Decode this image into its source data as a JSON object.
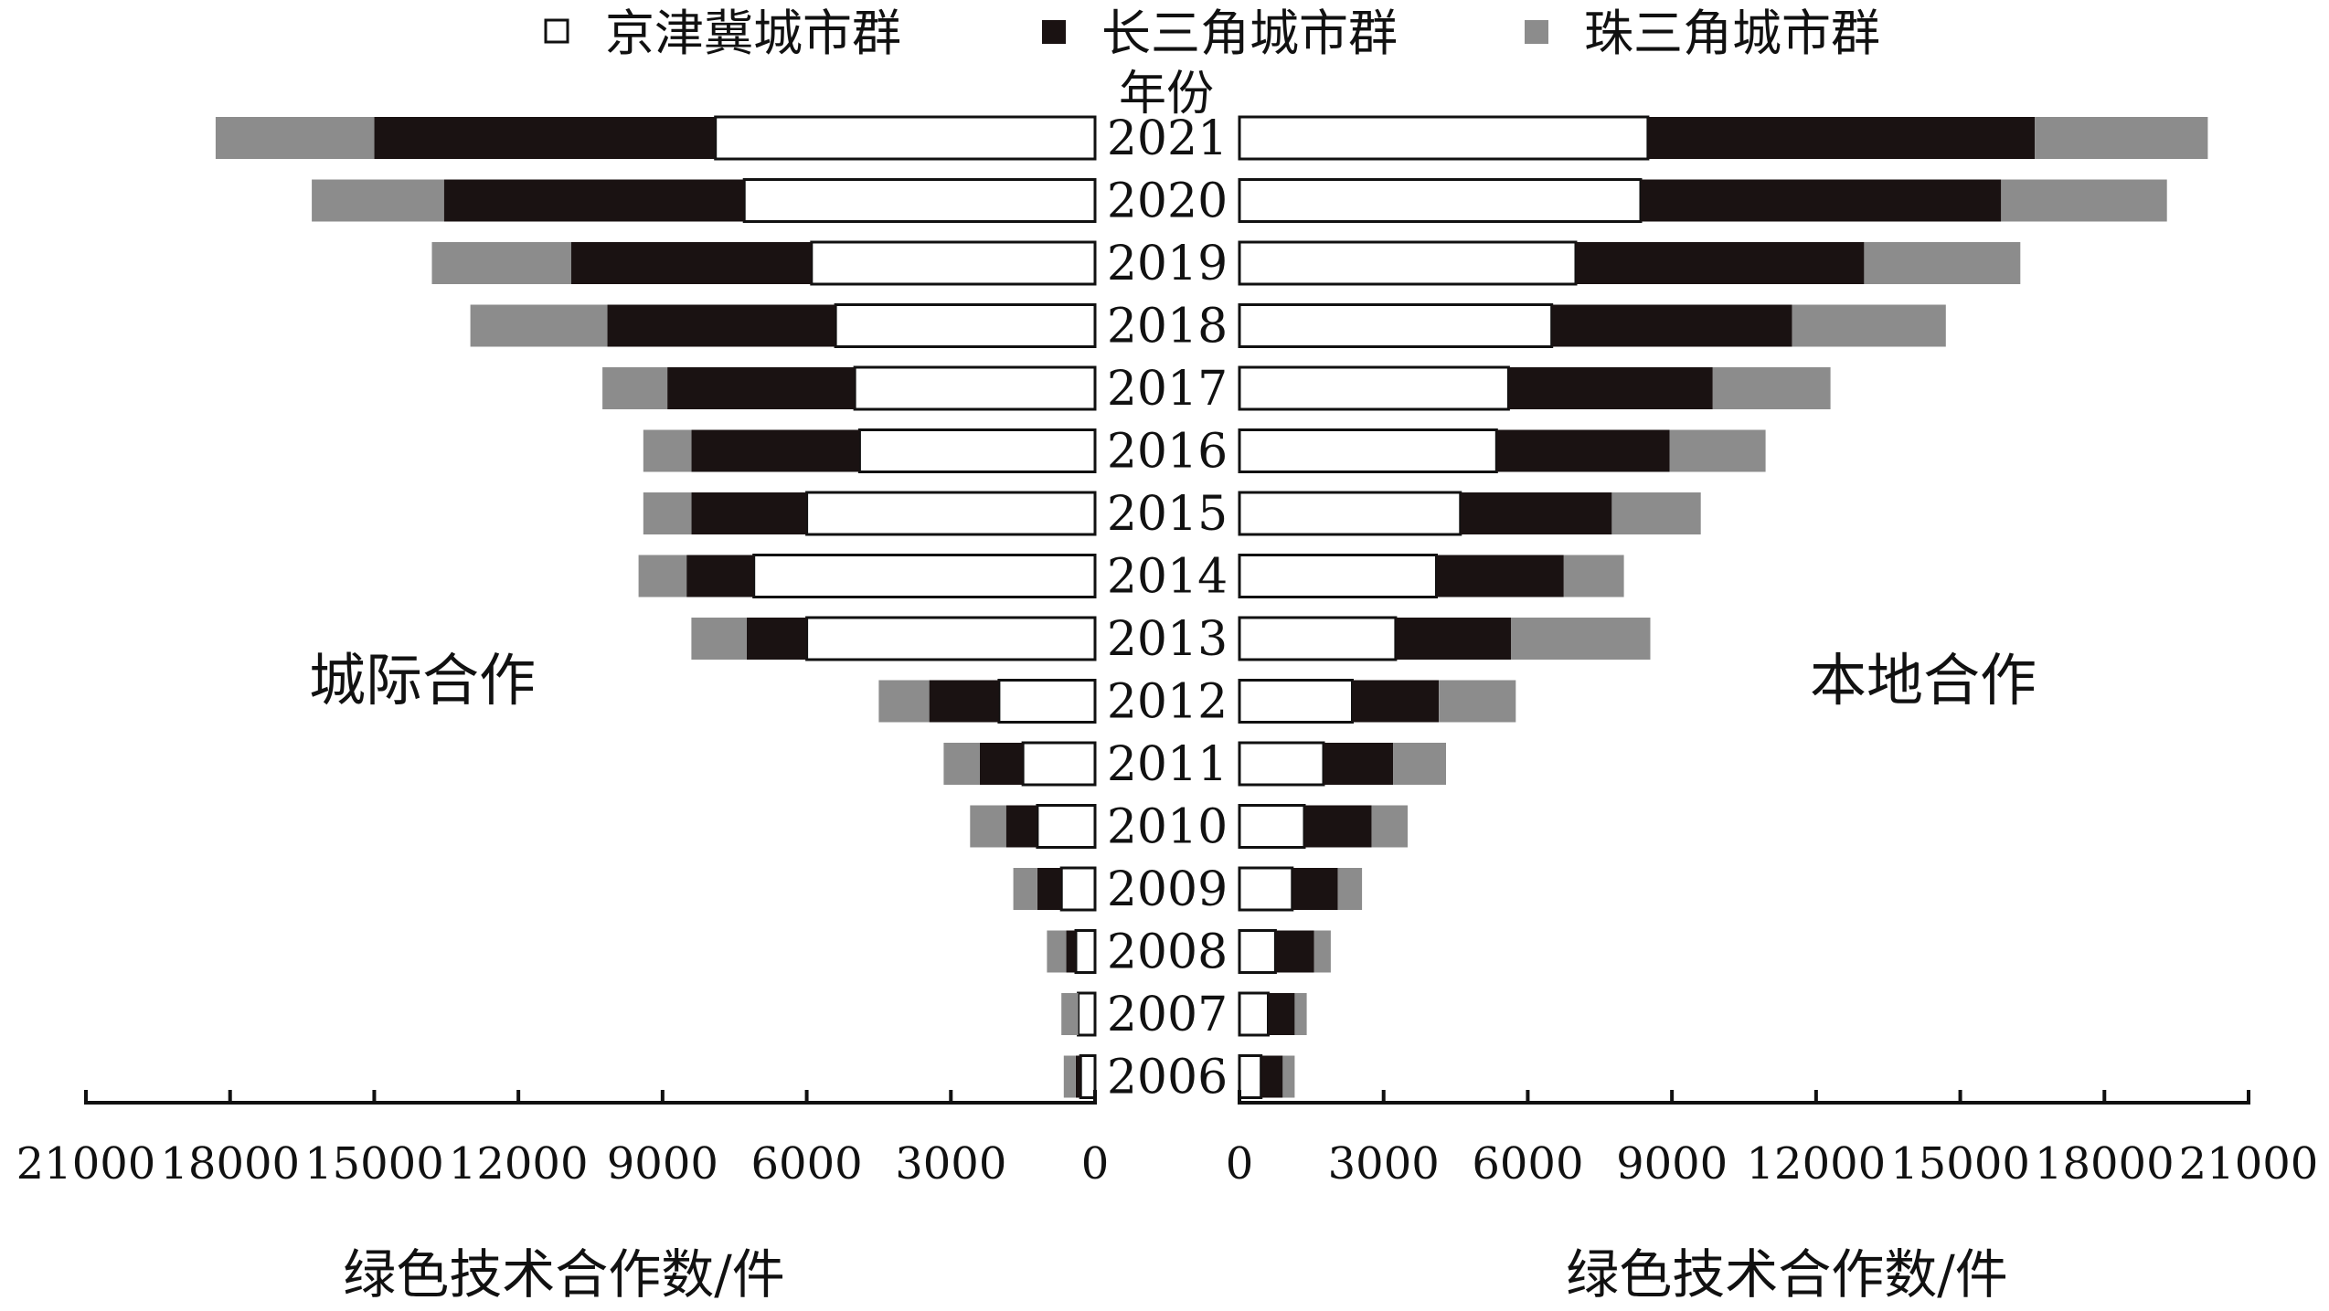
{
  "chart_data": {
    "type": "bar",
    "orientation": "horizontal",
    "layout": "back-to-back stacked",
    "legend": {
      "placement": "top",
      "entries": [
        {
          "label": "京津冀城市群",
          "color": "#ffffff",
          "marker": "□"
        },
        {
          "label": "长三角城市群",
          "color": "#1a1212",
          "marker": "■"
        },
        {
          "label": "珠三角城市群",
          "color": "#8c8c8c",
          "marker": "■"
        }
      ]
    },
    "center_axis_label": "年份",
    "categories": [
      "2021",
      "2020",
      "2019",
      "2018",
      "2017",
      "2016",
      "2015",
      "2014",
      "2013",
      "2012",
      "2011",
      "2010",
      "2009",
      "2008",
      "2007",
      "2006"
    ],
    "panels": [
      {
        "title": "城际合作",
        "side": "left",
        "xlabel": "绿色技术合作数/件",
        "xlim": [
          0,
          21000
        ],
        "ticks": [
          "21000",
          "18000",
          "15000",
          "12000",
          "9000",
          "6000",
          "3000",
          "0"
        ],
        "tick_values": [
          21000,
          18000,
          15000,
          12000,
          9000,
          6000,
          3000,
          0
        ],
        "series": [
          {
            "name": "京津冀城市群",
            "values": [
              7900,
              7300,
              5900,
              5400,
              5000,
              4900,
              6000,
              7100,
              6000,
              2000,
              1500,
              1200,
              700,
              400,
              350,
              300
            ]
          },
          {
            "name": "长三角城市群",
            "values": [
              7100,
              6250,
              5000,
              4750,
              3900,
              3500,
              2400,
              1400,
              1250,
              1450,
              900,
              650,
              500,
              200,
              0,
              100
            ]
          },
          {
            "name": "珠三角城市群",
            "values": [
              3300,
              2750,
              2900,
              2850,
              1350,
              1000,
              1000,
              1000,
              1150,
              1050,
              750,
              750,
              500,
              400,
              350,
              250
            ]
          }
        ]
      },
      {
        "title": "本地合作",
        "side": "right",
        "xlabel": "绿色技术合作数/件",
        "xlim": [
          0,
          21000
        ],
        "ticks": [
          "0",
          "3000",
          "6000",
          "9000",
          "12000",
          "15000",
          "18000",
          "21000"
        ],
        "tick_values": [
          0,
          3000,
          6000,
          9000,
          12000,
          15000,
          18000,
          21000
        ],
        "series": [
          {
            "name": "京津冀城市群",
            "values": [
              8500,
              8350,
              7000,
              6500,
              5600,
              5350,
              4600,
              4100,
              3250,
              2350,
              1750,
              1350,
              1100,
              750,
              600,
              450
            ]
          },
          {
            "name": "长三角城市群",
            "values": [
              8050,
              7500,
              6000,
              5000,
              4250,
              3600,
              3150,
              2650,
              2400,
              1800,
              1450,
              1400,
              950,
              800,
              550,
              450
            ]
          },
          {
            "name": "珠三角城市群",
            "values": [
              3600,
              3450,
              3250,
              3200,
              2450,
              2000,
              1850,
              1250,
              2900,
              1600,
              1100,
              750,
              500,
              350,
              250,
              250
            ]
          }
        ]
      }
    ]
  }
}
